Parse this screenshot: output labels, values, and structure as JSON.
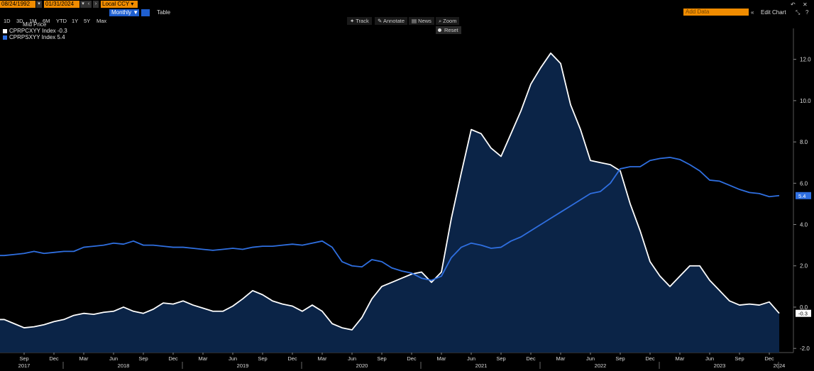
{
  "toolbar": {
    "start_date": "08/24/1992",
    "end_date": "01/31/2024",
    "currency": "Local CCY",
    "ranges": [
      "1D",
      "3D",
      "1M",
      "6M",
      "YTD",
      "1Y",
      "5Y",
      "Max"
    ],
    "frequency": "Monthly",
    "table_label": "Table",
    "add_data_placeholder": "Add Data",
    "edit_chart_label": "Edit Chart",
    "tools": [
      "Track",
      "Annotate",
      "News",
      "Zoom"
    ],
    "reset_label": "Reset"
  },
  "legend": {
    "header": "Mid Price",
    "items": [
      {
        "label": "CPRPCXYY Index -0.3",
        "color": "#ffffff"
      },
      {
        "label": "CPRPSXYY Index 5.4",
        "color": "#2f6fe0"
      }
    ]
  },
  "colors": {
    "area_fill": "#0b2447",
    "white_series": "#ffffff",
    "blue_series": "#2f6fe0",
    "last_label_blue_bg": "#2f6fe0"
  },
  "chart_data": {
    "type": "line",
    "x_start": "2017-06",
    "x_end": "2024-01",
    "frequency": "monthly",
    "ylim": [
      -2.2,
      13.5
    ],
    "yticks": [
      "12.0",
      "10.0",
      "8.0",
      "6.0",
      "4.0",
      "2.0",
      "0.0",
      "-2.0"
    ],
    "ytick_values": [
      12,
      10,
      8,
      6,
      4,
      2,
      0,
      -2
    ],
    "month_labels": [
      "Sep",
      "Dec",
      "Mar",
      "Jun",
      "Sep",
      "Dec",
      "Mar",
      "Jun",
      "Sep",
      "Dec",
      "Mar",
      "Jun",
      "Sep",
      "Dec",
      "Mar",
      "Jun",
      "Sep",
      "Dec",
      "Mar",
      "Jun",
      "Sep",
      "Dec",
      "Mar",
      "Jun",
      "Sep",
      "Dec"
    ],
    "year_labels": [
      "2017",
      "2018",
      "2019",
      "2020",
      "2021",
      "2022",
      "2023",
      "2024"
    ],
    "series": [
      {
        "name": "CPRPCXYY Index",
        "last_value_label": "-0.3",
        "values": [
          -0.6,
          -0.6,
          -0.8,
          -1.0,
          -0.95,
          -0.85,
          -0.7,
          -0.6,
          -0.4,
          -0.3,
          -0.35,
          -0.25,
          -0.2,
          0.0,
          -0.2,
          -0.3,
          -0.1,
          0.2,
          0.15,
          0.3,
          0.1,
          -0.05,
          -0.2,
          -0.2,
          0.05,
          0.4,
          0.8,
          0.6,
          0.3,
          0.15,
          0.05,
          -0.2,
          0.1,
          -0.2,
          -0.8,
          -1.0,
          -1.1,
          -0.5,
          0.4,
          1.0,
          1.2,
          1.4,
          1.6,
          1.7,
          1.2,
          1.7,
          4.3,
          6.5,
          8.6,
          8.4,
          7.7,
          7.3,
          8.4,
          9.5,
          10.8,
          11.6,
          12.3,
          11.8,
          9.8,
          8.6,
          7.1,
          7.0,
          6.9,
          6.6,
          5.0,
          3.7,
          2.2,
          1.5,
          1.0,
          1.5,
          2.0,
          2.0,
          1.3,
          0.8,
          0.3,
          0.1,
          0.15,
          0.1,
          0.25,
          -0.3
        ],
        "fill_below": true
      },
      {
        "name": "CPRPSXYY Index",
        "last_value_label": "5.4",
        "values": [
          2.5,
          2.5,
          2.55,
          2.6,
          2.7,
          2.6,
          2.65,
          2.7,
          2.7,
          2.9,
          2.95,
          3.0,
          3.1,
          3.05,
          3.2,
          3.0,
          3.0,
          2.95,
          2.9,
          2.9,
          2.85,
          2.8,
          2.75,
          2.8,
          2.85,
          2.8,
          2.9,
          2.95,
          2.95,
          3.0,
          3.05,
          3.0,
          3.1,
          3.2,
          2.9,
          2.2,
          2.0,
          1.95,
          2.3,
          2.2,
          1.9,
          1.75,
          1.65,
          1.4,
          1.3,
          1.5,
          2.4,
          2.9,
          3.1,
          3.0,
          2.85,
          2.9,
          3.2,
          3.4,
          3.7,
          4.0,
          4.3,
          4.6,
          4.9,
          5.2,
          5.5,
          5.6,
          6.0,
          6.7,
          6.8,
          6.8,
          7.1,
          7.2,
          7.25,
          7.15,
          6.9,
          6.6,
          6.15,
          6.1,
          5.9,
          5.7,
          5.55,
          5.5,
          5.35,
          5.4
        ]
      }
    ]
  }
}
